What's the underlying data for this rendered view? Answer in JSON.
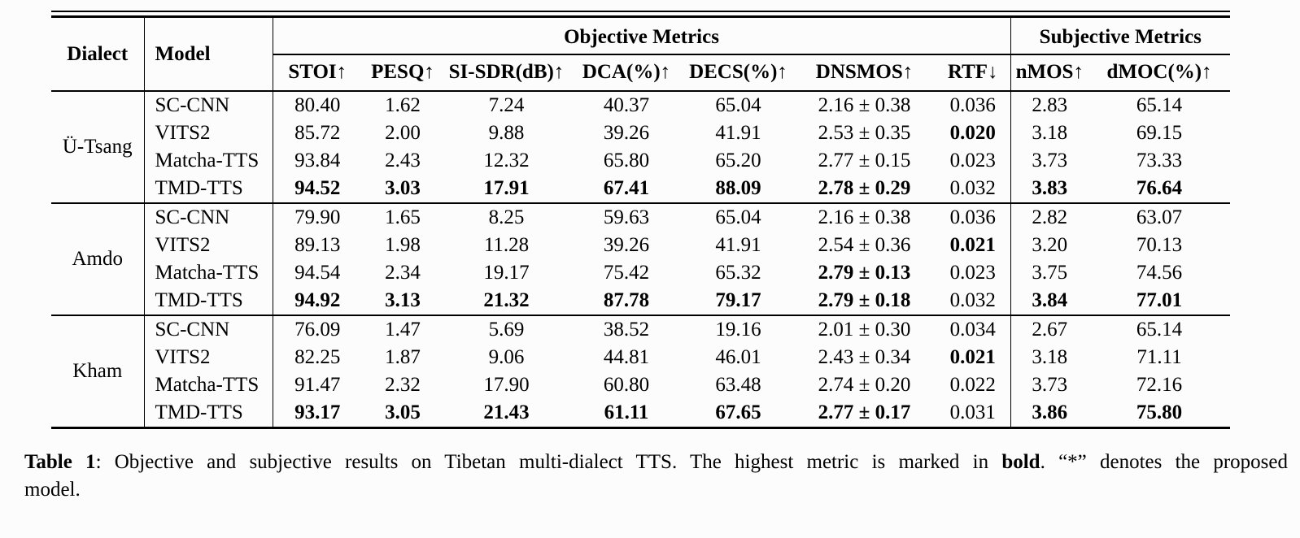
{
  "table": {
    "header": {
      "dialect": "Dialect",
      "model": "Model",
      "objective_group": "Objective Metrics",
      "subjective_group": "Subjective Metrics",
      "objective_cols": [
        "STOI↑",
        "PESQ↑",
        "SI-SDR(dB)↑",
        "DCA(%)↑",
        "DECS(%)↑",
        "DNSMOS↑",
        "RTF↓"
      ],
      "subjective_cols": [
        "nMOS↑",
        "dMOC(%)↑"
      ]
    },
    "groups": [
      {
        "dialect": "Ü-Tsang",
        "rows": [
          {
            "model": "SC-CNN",
            "values": [
              "80.40",
              "1.62",
              "7.24",
              "40.37",
              "65.04",
              "2.16 ± 0.38",
              "0.036",
              "2.83",
              "65.14"
            ]
          },
          {
            "model": "VITS2",
            "values": [
              "85.72",
              "2.00",
              "9.88",
              "39.26",
              "41.91",
              "2.53 ± 0.35",
              "0.020",
              "3.18",
              "69.15"
            ]
          },
          {
            "model": "Matcha-TTS",
            "values": [
              "93.84",
              "2.43",
              "12.32",
              "65.80",
              "65.20",
              "2.77 ± 0.15",
              "0.023",
              "3.73",
              "73.33"
            ]
          },
          {
            "model": "TMD-TTS",
            "values": [
              "94.52",
              "3.03",
              "17.91",
              "67.41",
              "88.09",
              "2.78 ± 0.29",
              "0.032",
              "3.83",
              "76.64"
            ]
          }
        ]
      },
      {
        "dialect": "Amdo",
        "rows": [
          {
            "model": "SC-CNN",
            "values": [
              "79.90",
              "1.65",
              "8.25",
              "59.63",
              "65.04",
              "2.16 ± 0.38",
              "0.036",
              "2.82",
              "63.07"
            ]
          },
          {
            "model": "VITS2",
            "values": [
              "89.13",
              "1.98",
              "11.28",
              "39.26",
              "41.91",
              "2.54 ± 0.36",
              "0.021",
              "3.20",
              "70.13"
            ]
          },
          {
            "model": "Matcha-TTS",
            "values": [
              "94.54",
              "2.34",
              "19.17",
              "75.42",
              "65.32",
              "2.79 ± 0.13",
              "0.023",
              "3.75",
              "74.56"
            ]
          },
          {
            "model": "TMD-TTS",
            "values": [
              "94.92",
              "3.13",
              "21.32",
              "87.78",
              "79.17",
              "2.79 ± 0.18",
              "0.032",
              "3.84",
              "77.01"
            ]
          }
        ]
      },
      {
        "dialect": "Kham",
        "rows": [
          {
            "model": "SC-CNN",
            "values": [
              "76.09",
              "1.47",
              "5.69",
              "38.52",
              "19.16",
              "2.01 ± 0.30",
              "0.034",
              "2.67",
              "65.14"
            ]
          },
          {
            "model": "VITS2",
            "values": [
              "82.25",
              "1.87",
              "9.06",
              "44.81",
              "46.01",
              "2.43 ± 0.34",
              "0.021",
              "3.18",
              "71.11"
            ]
          },
          {
            "model": "Matcha-TTS",
            "values": [
              "91.47",
              "2.32",
              "17.90",
              "60.80",
              "63.48",
              "2.74 ± 0.20",
              "0.022",
              "3.73",
              "72.16"
            ]
          },
          {
            "model": "TMD-TTS",
            "values": [
              "93.17",
              "3.05",
              "21.43",
              "61.11",
              "67.65",
              "2.77 ± 0.17",
              "0.031",
              "3.86",
              "75.80"
            ]
          }
        ]
      }
    ]
  },
  "caption": {
    "label": "Table 1",
    "sep": ": ",
    "body": "Objective and subjective results on Tibetan multi-dialect TTS. The highest metric is marked in ",
    "bold_word": "bold",
    "tail": ". “*” denotes the proposed",
    "line2": "model."
  }
}
